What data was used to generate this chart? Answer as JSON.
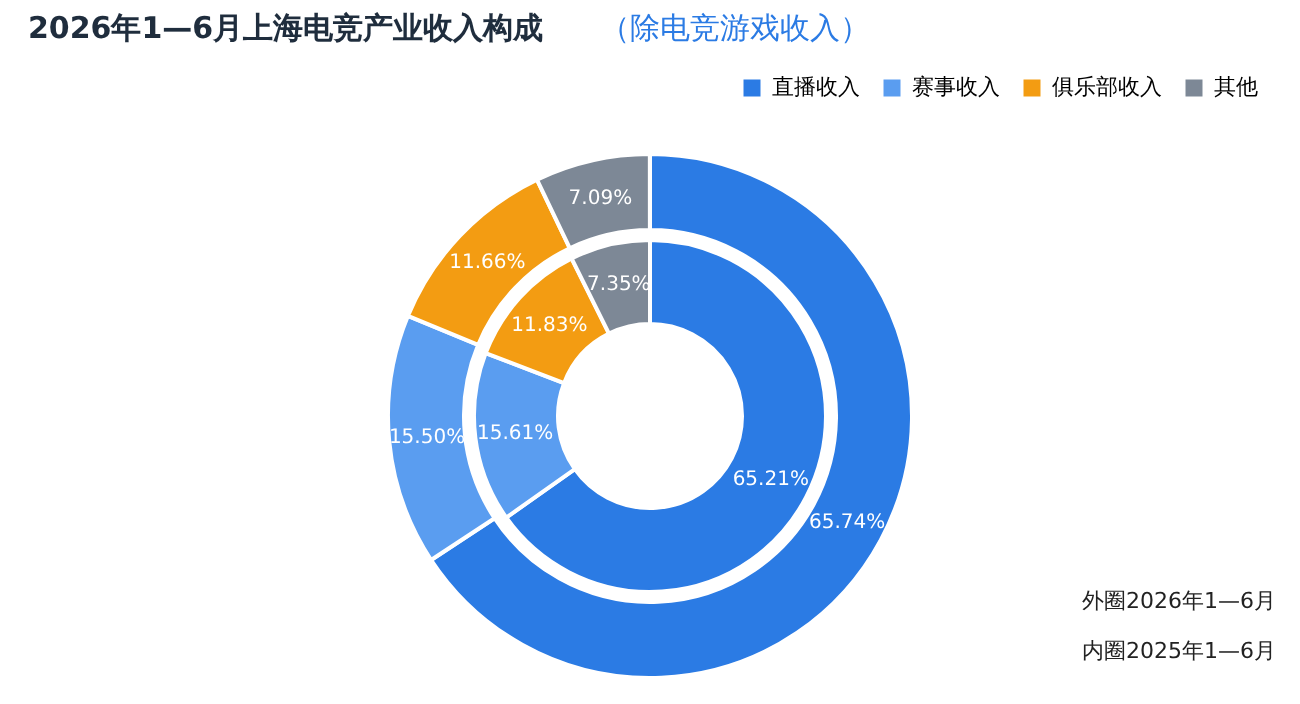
{
  "chart_data": {
    "type": "donut",
    "title": "2026年1—6月上海电竞产业收入构成",
    "subtitle": "（除电竞游戏收入）",
    "categories": [
      "直播收入",
      "赛事收入",
      "俱乐部收入",
      "其他"
    ],
    "colors": [
      "#2b7be4",
      "#5a9df0",
      "#f39c12",
      "#7d8896"
    ],
    "series": [
      {
        "values": [
          65.74,
          15.5,
          11.66,
          7.09
        ],
        "value_labels": [
          "65.74%",
          "15.50%",
          "11.66%",
          "7.09%"
        ]
      },
      {
        "values": [
          65.21,
          15.61,
          11.83,
          7.35
        ],
        "value_labels": [
          "65.21%",
          "15.61%",
          "11.83%",
          "7.35%"
        ]
      }
    ],
    "legend": "top right",
    "annotations": [
      "外圈2026年1—6月",
      "内圈2025年1—6月"
    ]
  }
}
